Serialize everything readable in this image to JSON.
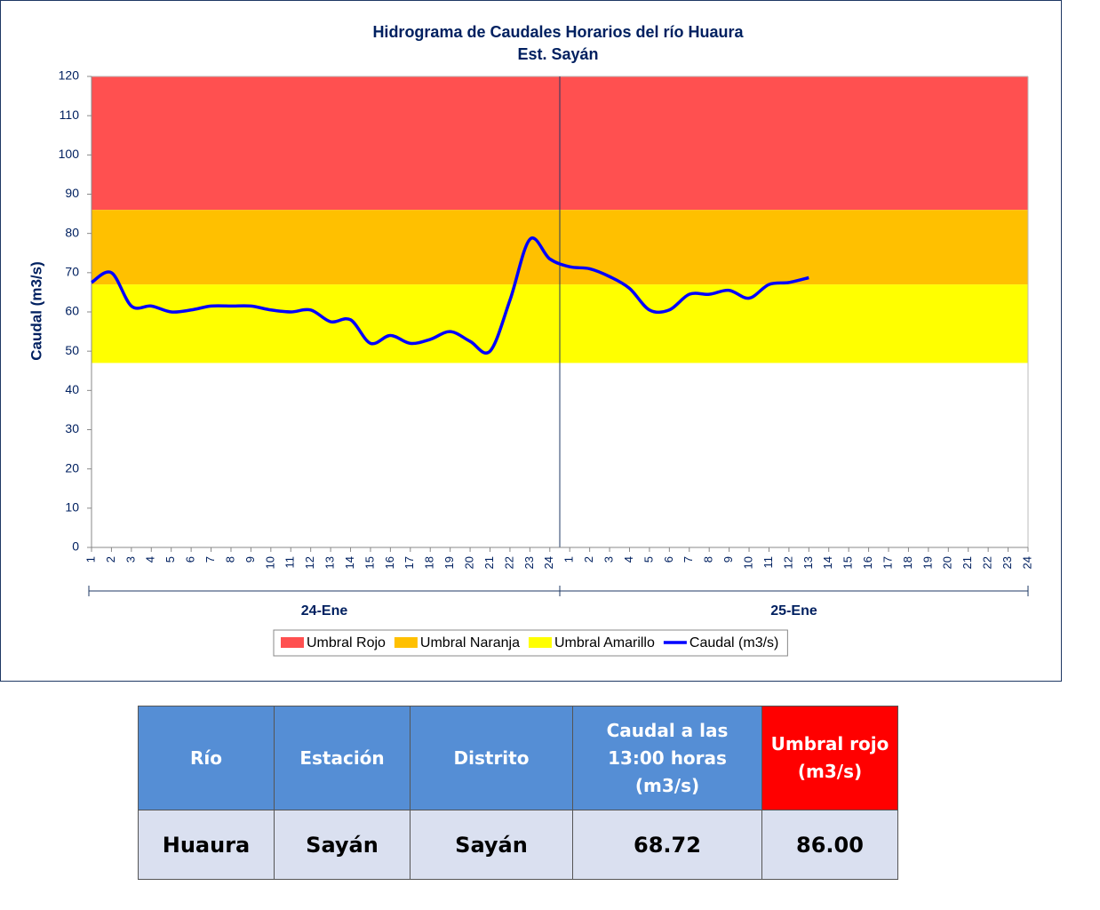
{
  "chart_data": {
    "type": "line",
    "title": "Hidrograma de Caudales Horarios del río Huaura",
    "subtitle": "Est. Sayán",
    "y_label": "Caudal (m3/s)",
    "categories": [
      "1",
      "2",
      "3",
      "4",
      "5",
      "6",
      "7",
      "8",
      "9",
      "10",
      "11",
      "12",
      "13",
      "14",
      "15",
      "16",
      "17",
      "18",
      "19",
      "20",
      "21",
      "22",
      "23",
      "24",
      "1",
      "2",
      "3",
      "4",
      "5",
      "6",
      "7",
      "8",
      "9",
      "10",
      "11",
      "12",
      "13",
      "14",
      "15",
      "16",
      "17",
      "18",
      "19",
      "20",
      "21",
      "22",
      "23",
      "24"
    ],
    "groups": [
      "24-Ene",
      "25-Ene"
    ],
    "bands": [
      {
        "name": "Umbral Rojo",
        "color": "#ff5050",
        "band": [
          86,
          120
        ]
      },
      {
        "name": "Umbral Naranja",
        "color": "#ffc000",
        "band": [
          67,
          86
        ]
      },
      {
        "name": "Umbral Amarillo",
        "color": "#ffff00",
        "band": [
          47,
          67
        ]
      }
    ],
    "series": [
      {
        "name": "Caudal (m3/s)",
        "color": "#0000ff",
        "values": [
          67.5,
          70,
          61.5,
          61.5,
          60,
          60.5,
          61.5,
          61.5,
          61.5,
          60.5,
          60,
          60.5,
          57.5,
          58,
          52,
          54,
          52,
          53,
          55,
          52.5,
          50,
          63,
          78.5,
          73.5,
          71.5,
          71,
          69,
          66,
          60.5,
          60.5,
          64.5,
          64.5,
          65.5,
          63.5,
          67,
          67.5,
          68.72,
          null,
          null,
          null,
          null,
          null,
          null,
          null,
          null,
          null,
          null,
          null
        ]
      }
    ],
    "ylim": [
      0,
      120
    ],
    "yticks": [
      0,
      10,
      20,
      30,
      40,
      50,
      60,
      70,
      80,
      90,
      100,
      110,
      120
    ],
    "grid": false,
    "legend": "bottom"
  },
  "table": {
    "header": [
      "Río",
      "Estación",
      "Distrito",
      "Caudal a las 13:00 horas (m3/s)",
      "Umbral rojo (m3/s)"
    ],
    "rows": [
      [
        "Huaura",
        "Sayán",
        "Sayán",
        "68.72",
        "86.00"
      ]
    ]
  }
}
